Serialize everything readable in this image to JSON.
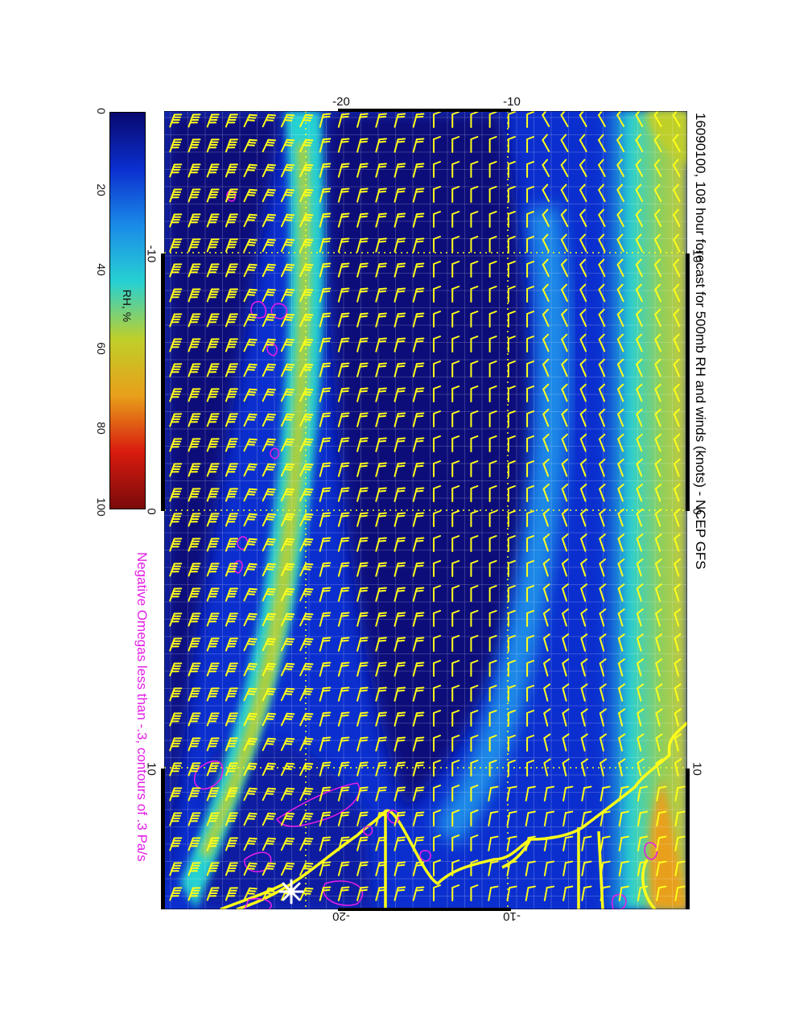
{
  "title": "16090100, 108 hour forecast for 500mb RH and winds (knots) - NCEP GFS",
  "subtitle": "Negative Omegas less than -.3, contours of .3 Pa/s",
  "colorbar": {
    "label": "RH, %",
    "ticks": [
      "0",
      "20",
      "40",
      "60",
      "80",
      "100"
    ],
    "colors": [
      "#08086e",
      "#0b2fcf",
      "#1a8be8",
      "#27d1d2",
      "#bfcf2a",
      "#e8a01a",
      "#d81b0f",
      "#7a0a0a"
    ]
  },
  "axes": {
    "top_ticks": [
      "-20",
      "-10"
    ],
    "bottom_ticks": [
      "-20",
      "-10"
    ],
    "left_ticks": [
      "-10",
      "0",
      "10"
    ],
    "right_ticks": [
      "-10",
      "0",
      "10"
    ]
  },
  "colors": {
    "barb": "#ffff1a",
    "coast": "#ffff1a",
    "omega": "#e21ee6",
    "subtitle": "#e21ee6"
  },
  "icons": [
    "wind-barb-icon",
    "star-marker-icon"
  ]
}
